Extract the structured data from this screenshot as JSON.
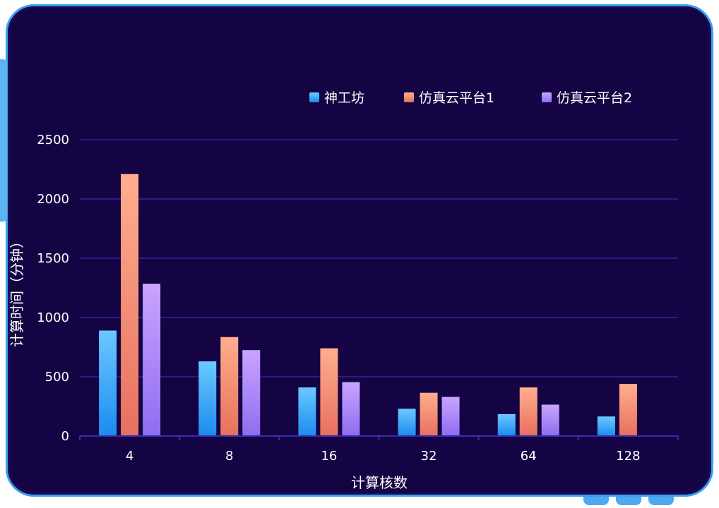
{
  "chart_data": {
    "type": "bar",
    "xlabel": "计算核数",
    "ylabel": "计算时间（分钟）",
    "categories": [
      "4",
      "8",
      "16",
      "32",
      "64",
      "128"
    ],
    "ylim": [
      0,
      2500
    ],
    "yticks": [
      "0",
      "500",
      "1000",
      "1500",
      "2000",
      "2500"
    ],
    "grid": true,
    "legend_position": "top-right",
    "series": [
      {
        "name": "神工坊",
        "values": [
          890,
          630,
          410,
          230,
          185,
          165
        ],
        "color_top": "#6cc8ff",
        "color_bottom": "#1a8cf0"
      },
      {
        "name": "仿真云平台1",
        "values": [
          2210,
          835,
          740,
          365,
          410,
          440
        ],
        "color_top": "#ffae8e",
        "color_bottom": "#e8705e"
      },
      {
        "name": "仿真云平台2",
        "values": [
          1285,
          725,
          455,
          330,
          265,
          null
        ],
        "color_top": "#c9a4ff",
        "color_bottom": "#8f6cf0"
      }
    ]
  }
}
